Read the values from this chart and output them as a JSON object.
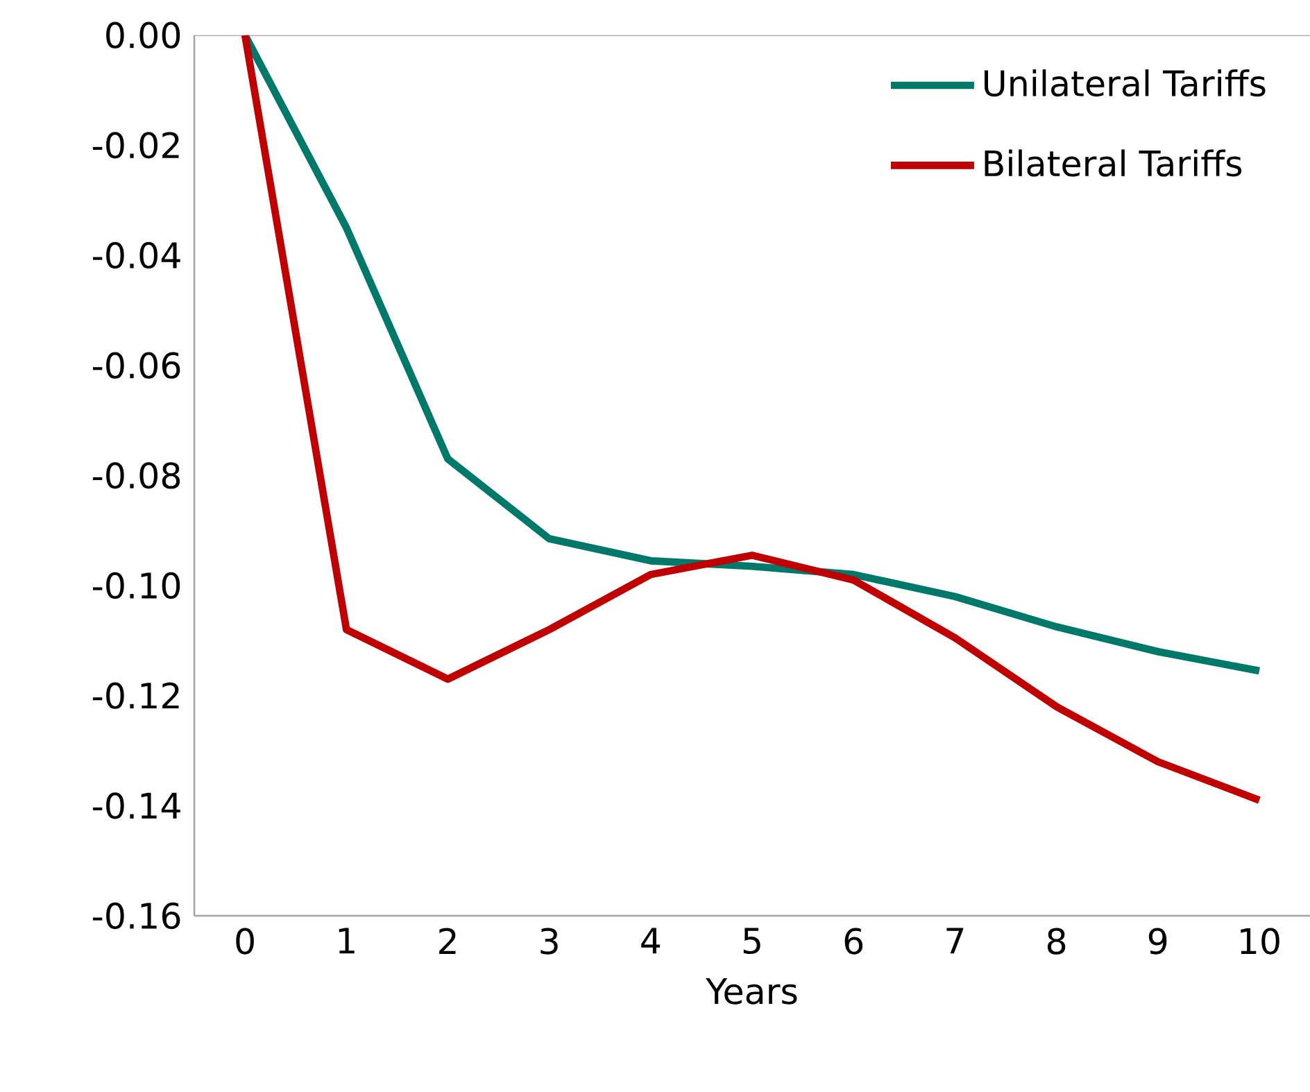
{
  "chart_data": {
    "type": "line",
    "xlabel": "Years",
    "categories": [
      "0",
      "1",
      "2",
      "3",
      "4",
      "5",
      "6",
      "7",
      "8",
      "9",
      "10"
    ],
    "series": [
      {
        "name": "Unilateral Tariffs",
        "color": "#00786a",
        "values": [
          0,
          -0.035,
          -0.077,
          -0.0915,
          -0.0955,
          -0.0965,
          -0.098,
          -0.102,
          -0.1075,
          -0.112,
          -0.1155
        ]
      },
      {
        "name": "Bilateral Tariffs",
        "color": "#c00000",
        "values": [
          0,
          -0.108,
          -0.117,
          -0.108,
          -0.098,
          -0.0945,
          -0.099,
          -0.1095,
          -0.122,
          -0.132,
          -0.139
        ]
      }
    ],
    "ylim": [
      -0.16,
      0
    ],
    "yticks": [
      {
        "value": 0,
        "label": "0.00"
      },
      {
        "value": -0.02,
        "label": "-0.02"
      },
      {
        "value": -0.04,
        "label": "-0.04"
      },
      {
        "value": -0.06,
        "label": "-0.06"
      },
      {
        "value": -0.08,
        "label": "-0.08"
      },
      {
        "value": -0.1,
        "label": "-0.10"
      },
      {
        "value": -0.12,
        "label": "-0.12"
      },
      {
        "value": -0.14,
        "label": "-0.14"
      },
      {
        "value": -0.16,
        "label": "-0.16"
      }
    ],
    "grid": false,
    "legend": "top right",
    "marker": "none",
    "line_style": "solid"
  }
}
